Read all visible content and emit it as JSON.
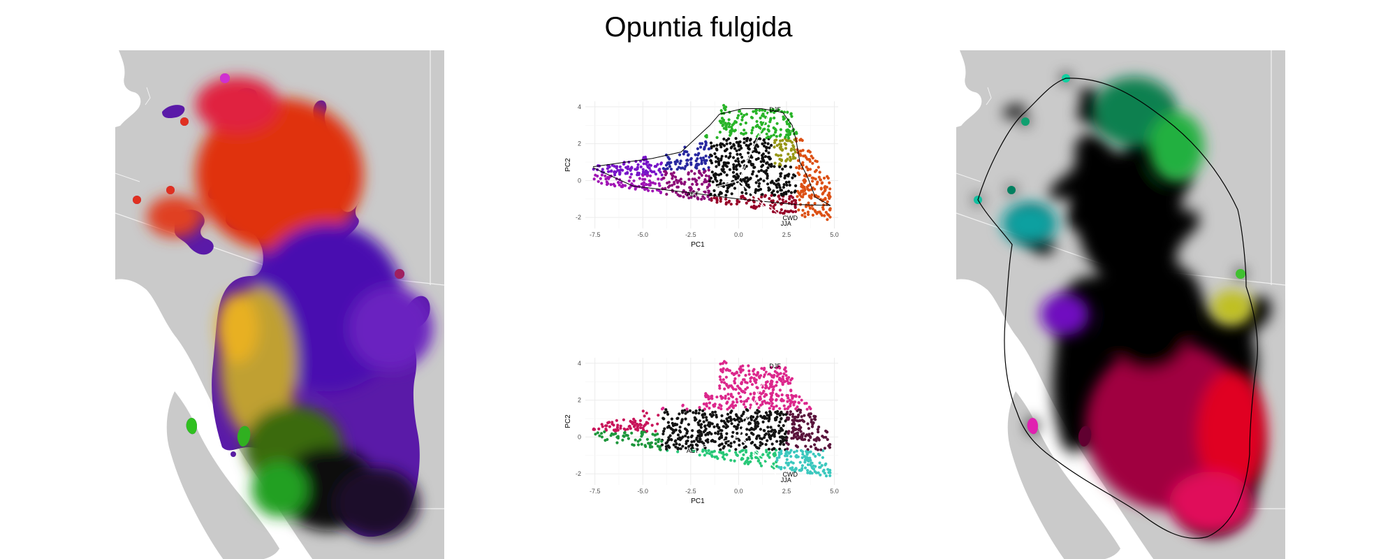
{
  "title": "Opuntia fulgida",
  "colors": {
    "land": "#cacaca",
    "sea": "#ffffff",
    "border": "#f2f2f2",
    "hull": "#000000"
  },
  "panels": {
    "left_map": {
      "type": "map",
      "note_color_scheme": "red-purple-yellow-green"
    },
    "right_map": {
      "type": "map",
      "note_color_scheme": "black-green-cyan-magenta-red"
    }
  },
  "chart_data": [
    {
      "type": "scatter",
      "panel": "biplot-top",
      "xlabel": "PC1",
      "ylabel": "PC2",
      "xlim": [
        -8,
        5.2
      ],
      "ylim": [
        -2.6,
        4.3
      ],
      "xticks": [
        "-7.5",
        "-5.0",
        "-2.5",
        "0.0",
        "2.5",
        "5.0"
      ],
      "yticks": [
        "-2",
        "0",
        "2",
        "4"
      ],
      "grid": true,
      "vectors": [
        {
          "label": "DJF",
          "x": 1.6,
          "y": 3.7
        },
        {
          "label": "AET",
          "x": -2.4,
          "y": -0.7
        },
        {
          "label": "CWD",
          "x": 2.3,
          "y": -2.0
        },
        {
          "label": "JJA",
          "x": 2.2,
          "y": -2.3
        }
      ]
    },
    {
      "type": "scatter",
      "panel": "biplot-bottom",
      "xlabel": "PC1",
      "ylabel": "PC2",
      "xlim": [
        -8,
        5.2
      ],
      "ylim": [
        -2.6,
        4.3
      ],
      "xticks": [
        "-7.5",
        "-5.0",
        "-2.5",
        "0.0",
        "2.5",
        "5.0"
      ],
      "yticks": [
        "-2",
        "0",
        "2",
        "4"
      ],
      "grid": true,
      "vectors": [
        {
          "label": "DJF",
          "x": 1.6,
          "y": 3.7
        },
        {
          "label": "AET",
          "x": -2.4,
          "y": -0.7
        },
        {
          "label": "CWD",
          "x": 2.3,
          "y": -2.0
        },
        {
          "label": "JJA",
          "x": 2.2,
          "y": -2.3
        }
      ]
    }
  ]
}
